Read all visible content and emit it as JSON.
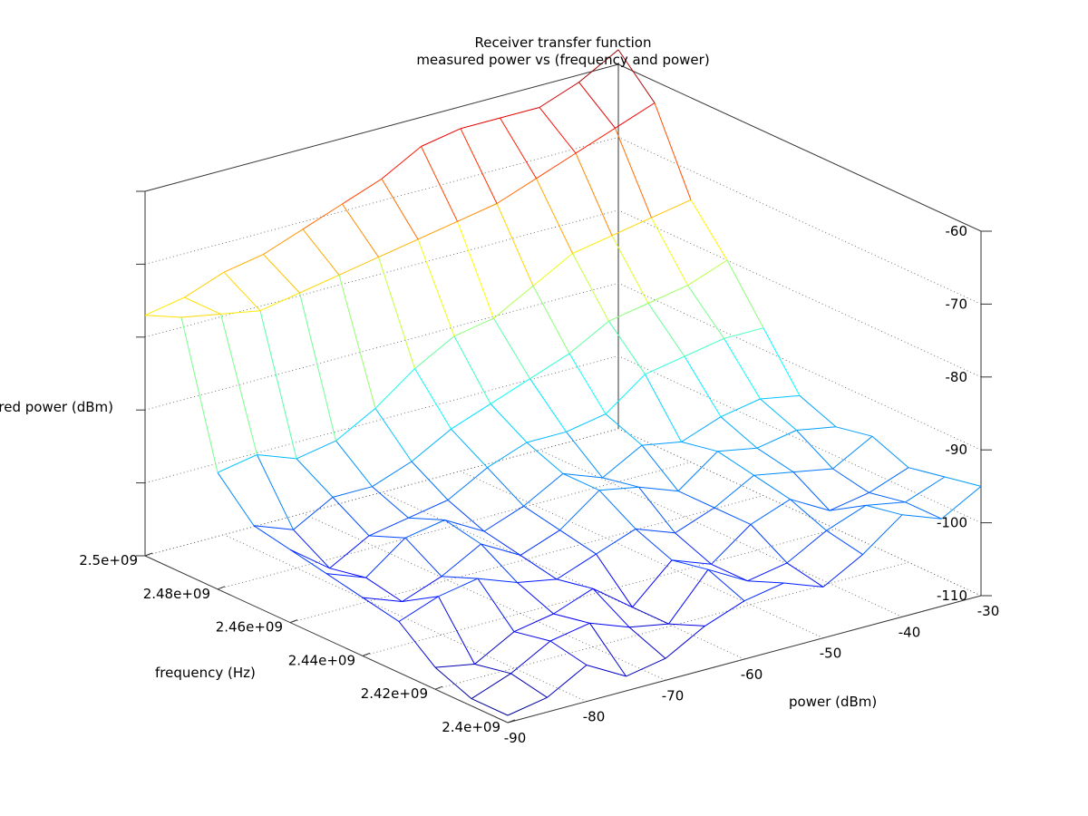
{
  "chart_data": {
    "type": "surface",
    "title": "Receiver transfer function",
    "subtitle": "measured power vs (frequency and power)",
    "xlabel": "frequency (Hz)",
    "ylabel": "power (dBm)",
    "zlabel": "measured power (dBm)",
    "xlim": [
      2400000000,
      2500000000
    ],
    "ylim": [
      -90,
      -30
    ],
    "zlim": [
      -110,
      -60
    ],
    "x_ticks": [
      "2.4e+09",
      "2.42e+09",
      "2.44e+09",
      "2.46e+09",
      "2.48e+09",
      "2.5e+09"
    ],
    "y_ticks": [
      "-90",
      "-80",
      "-70",
      "-60",
      "-50",
      "-40",
      "-30"
    ],
    "z_ticks": [
      "-110",
      "-100",
      "-90",
      "-80",
      "-70",
      "-60"
    ],
    "grid": true,
    "colormap": "jet",
    "frequency": [
      2400000000,
      2410000000,
      2420000000,
      2430000000,
      2440000000,
      2450000000,
      2460000000,
      2470000000,
      2480000000,
      2490000000,
      2500000000
    ],
    "input_power": [
      -90,
      -85,
      -80,
      -75,
      -70,
      -65,
      -60,
      -55,
      -50,
      -45,
      -40,
      -35,
      -30
    ],
    "measured_power": [
      [
        -109,
        -108,
        -105,
        -108,
        -107,
        -104,
        -102,
        -101,
        -103,
        -100,
        -96,
        -98,
        -95
      ],
      [
        -109,
        -107,
        -104,
        -103,
        -105,
        -106,
        -100,
        -103,
        -102,
        -99,
        -97,
        -98,
        -96
      ],
      [
        -107,
        -108,
        -105,
        -104,
        -102,
        -106,
        -101,
        -103,
        -99,
        -97,
        -100,
        -99,
        -97
      ],
      [
        -103,
        -101,
        -100,
        -102,
        -103,
        -101,
        -99,
        -101,
        -99,
        -96,
        -97,
        -98,
        -95
      ],
      [
        -102,
        -104,
        -102,
        -99,
        -102,
        -100,
        -96,
        -97,
        -99,
        -95,
        -96,
        -95,
        -96
      ],
      [
        -101,
        -103,
        -99,
        -98,
        -101,
        -99,
        -96,
        -98,
        -95,
        -96,
        -94,
        -93,
        -94
      ],
      [
        -100,
        -104,
        -101,
        -100,
        -99,
        -96,
        -94,
        -94,
        -93,
        -89,
        -88,
        -87,
        -87
      ],
      [
        -99,
        -101,
        -98,
        -98,
        -96,
        -93,
        -91,
        -89,
        -87,
        -84,
        -83,
        -82,
        -80
      ],
      [
        -94,
        -93,
        -95,
        -94,
        -91,
        -87,
        -84,
        -83,
        -80,
        -77,
        -76,
        -75,
        -74
      ],
      [
        -75,
        -76,
        -77,
        -76,
        -75,
        -74,
        -73,
        -72,
        -71,
        -69,
        -67,
        -65,
        -63
      ],
      [
        -77,
        -76,
        -74,
        -73,
        -71,
        -69,
        -67,
        -64,
        -63,
        -63,
        -63,
        -61,
        -58
      ]
    ]
  }
}
